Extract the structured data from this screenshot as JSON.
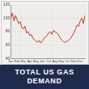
{
  "chart_data": {
    "type": "line",
    "title": "TOTAL US GAS DEMAND",
    "categories": [
      "Jan",
      null,
      null,
      null,
      "Feb",
      null,
      null,
      null,
      "Mar",
      null,
      null,
      null,
      "Apr",
      null,
      null,
      null,
      "May",
      null,
      null,
      null,
      "Jun",
      null,
      null,
      null,
      "Jul",
      null,
      null,
      null,
      "Aug",
      null,
      null,
      null,
      "Sep",
      null,
      null,
      null,
      "Oct",
      null,
      null,
      null,
      "Nov",
      null,
      null,
      null,
      "Dec",
      null,
      null,
      null
    ],
    "values": [
      100,
      108,
      96,
      104,
      98,
      92,
      95,
      86,
      84,
      88,
      78,
      80,
      74,
      76,
      70,
      68,
      66,
      64,
      67,
      63,
      66,
      70,
      72,
      74,
      78,
      80,
      76,
      82,
      80,
      78,
      76,
      72,
      68,
      66,
      64,
      65,
      66,
      68,
      70,
      74,
      78,
      84,
      90,
      88,
      96,
      100,
      92,
      104
    ],
    "color": "#c0392b",
    "ylim": [
      40,
      120
    ],
    "yticks": [
      40,
      60,
      80,
      100,
      120
    ],
    "grid": true
  }
}
